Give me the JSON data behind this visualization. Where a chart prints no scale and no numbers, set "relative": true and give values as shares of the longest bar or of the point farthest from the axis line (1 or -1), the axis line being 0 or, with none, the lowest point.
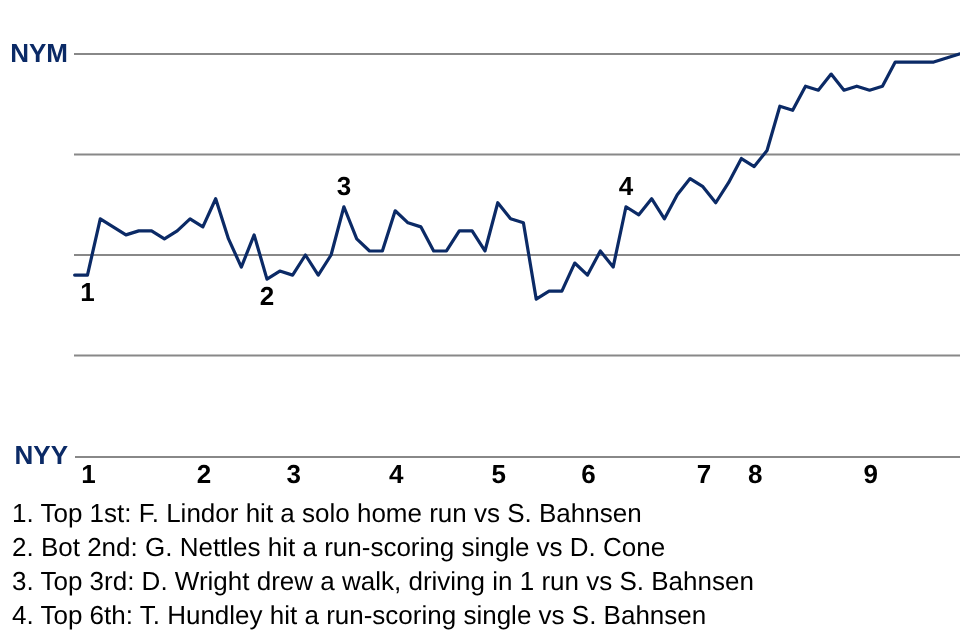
{
  "chart_data": {
    "type": "line",
    "relative": true,
    "categories": [
      null,
      "1",
      null,
      null,
      null,
      null,
      null,
      null,
      null,
      null,
      "2",
      null,
      null,
      null,
      null,
      null,
      null,
      "3",
      null,
      null,
      null,
      null,
      null,
      null,
      null,
      "4",
      null,
      null,
      null,
      null,
      null,
      null,
      null,
      "5",
      null,
      null,
      null,
      null,
      null,
      null,
      "6",
      null,
      null,
      null,
      null,
      null,
      null,
      null,
      null,
      "7",
      null,
      null,
      null,
      "8",
      null,
      null,
      null,
      null,
      null,
      null,
      null,
      null,
      "9",
      null,
      null,
      null,
      null,
      null,
      null,
      null
    ],
    "series": [
      {
        "color": "#0b2a66",
        "values": [
          0.45,
          0.45,
          0.59,
          0.57,
          0.55,
          0.56,
          0.56,
          0.54,
          0.56,
          0.59,
          0.57,
          0.64,
          0.54,
          0.47,
          0.55,
          0.44,
          0.46,
          0.45,
          0.5,
          0.45,
          0.5,
          0.62,
          0.54,
          0.51,
          0.51,
          0.61,
          0.58,
          0.57,
          0.51,
          0.51,
          0.56,
          0.56,
          0.51,
          0.63,
          0.59,
          0.58,
          0.39,
          0.41,
          0.41,
          0.48,
          0.45,
          0.51,
          0.47,
          0.62,
          0.6,
          0.64,
          0.59,
          0.65,
          0.69,
          0.67,
          0.63,
          0.68,
          0.74,
          0.72,
          0.76,
          0.87,
          0.86,
          0.92,
          0.91,
          0.95,
          0.91,
          0.92,
          0.91,
          0.92,
          0.98,
          0.98,
          0.98,
          0.98,
          0.99,
          1
        ]
      }
    ],
    "ref_lines": [
      {
        "axis": "y",
        "value": 0.25,
        "color": "#888888"
      },
      {
        "axis": "y",
        "value": 0.5,
        "color": "#888888"
      },
      {
        "axis": "y",
        "value": 0.75,
        "color": "#888888"
      },
      {
        "axis": "y",
        "value": 1,
        "color": "#888888"
      }
    ],
    "annotations": [
      "NYM",
      "NYY",
      {
        "text": "1",
        "x": "1",
        "y": 0.45
      },
      {
        "text": "2",
        "y": 0.44
      },
      {
        "text": "3",
        "y": 0.62
      },
      {
        "text": "4",
        "y": 0.62
      },
      "1. Top 1st: F. Lindor hit a solo home run vs S. Bahnsen",
      "2. Bot 2nd: G. Nettles hit a run-scoring single vs D. Cone",
      "3. Top 3rd: D. Wright drew a walk, driving in 1 run vs S. Bahnsen",
      "4. Top 6th: T. Hundley hit a run-scoring single vs S. Bahnsen"
    ]
  }
}
